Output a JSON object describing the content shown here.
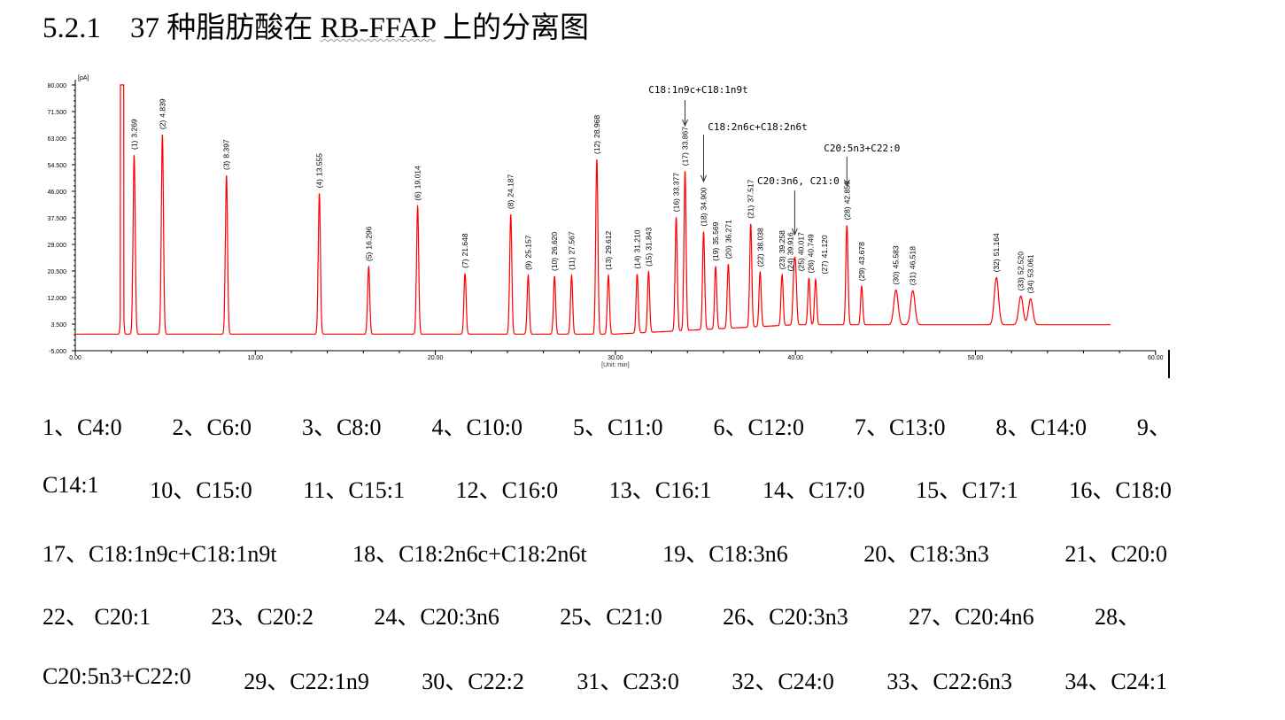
{
  "heading": {
    "number": "5.2.1",
    "text_before": "37 种脂肪酸在 ",
    "column": "RB-FFAP",
    "text_after": " 上的分离图"
  },
  "chart_data": {
    "type": "line",
    "title": "",
    "ylabel": "[pA]",
    "xlabel": "[Unit: min]",
    "xlim": [
      0,
      60
    ],
    "ylim": [
      -5,
      80
    ],
    "y_ticks": [
      "80.000",
      "71.500",
      "63.000",
      "54.500",
      "46.000",
      "37.500",
      "29.000",
      "20.500",
      "12.000",
      "3.500",
      "-5.000"
    ],
    "x_ticks": [
      "0.00",
      "10.00",
      "20.00",
      "30.00",
      "40.00",
      "50.00",
      "60.00"
    ],
    "colors": {
      "trace": "#ff0000",
      "axis": "#000000",
      "integration": "#3333ff"
    },
    "solvent_peak": {
      "rt": 2.6,
      "height": 80
    },
    "peaks": [
      {
        "id": "(1)",
        "rt": "3.269",
        "height": 57.3
      },
      {
        "id": "(2)",
        "rt": "4.839",
        "height": 63.8
      },
      {
        "id": "(3)",
        "rt": "8.397",
        "height": 50.8
      },
      {
        "id": "(4)",
        "rt": "13.555",
        "height": 45.0
      },
      {
        "id": "(5)",
        "rt": "16.296",
        "height": 21.6
      },
      {
        "id": "(6)",
        "rt": "19.014",
        "height": 41.0
      },
      {
        "id": "(7)",
        "rt": "21.648",
        "height": 19.4
      },
      {
        "id": "(8)",
        "rt": "24.187",
        "height": 38.3
      },
      {
        "id": "(9)",
        "rt": "25.157",
        "height": 18.8
      },
      {
        "id": "(10)",
        "rt": "26.620",
        "height": 18.5
      },
      {
        "id": "(11)",
        "rt": "27.567",
        "height": 18.8
      },
      {
        "id": "(12)",
        "rt": "28.968",
        "height": 55.9
      },
      {
        "id": "(13)",
        "rt": "29.612",
        "height": 18.8
      },
      {
        "id": "(14)",
        "rt": "31.210",
        "height": 18.8
      },
      {
        "id": "(15)",
        "rt": "31.843",
        "height": 19.4
      },
      {
        "id": "(16)",
        "rt": "33.377",
        "height": 36.4
      },
      {
        "id": "(17)",
        "rt": "33.867",
        "height": 51.0
      },
      {
        "id": "(18)",
        "rt": "34.900",
        "height": 31.3
      },
      {
        "id": "(19)",
        "rt": "35.569",
        "height": 20.0
      },
      {
        "id": "(20)",
        "rt": "36.271",
        "height": 20.5
      },
      {
        "id": "(21)",
        "rt": "37.517",
        "height": 33.0
      },
      {
        "id": "(22)",
        "rt": "38.038",
        "height": 17.4
      },
      {
        "id": "(23)",
        "rt": "39.258",
        "height": 16.2
      },
      {
        "id": "(24)",
        "rt": "39.916",
        "height": 15.4
      },
      {
        "id": "(25)",
        "rt": "40.017",
        "height": 15.4
      },
      {
        "id": "(26)",
        "rt": "40.749",
        "height": 14.8
      },
      {
        "id": "(27)",
        "rt": "41.120",
        "height": 14.5
      },
      {
        "id": "(28)",
        "rt": "42.859",
        "height": 31.8
      },
      {
        "id": "(29)",
        "rt": "43.678",
        "height": 12.3
      },
      {
        "id": "(30)",
        "rt": "45.583",
        "height": 11.1
      },
      {
        "id": "(31)",
        "rt": "46.518",
        "height": 10.9
      },
      {
        "id": "(32)",
        "rt": "51.164",
        "height": 15.1
      },
      {
        "id": "(33)",
        "rt": "52.520",
        "height": 9.2
      },
      {
        "id": "(34)",
        "rt": "53.061",
        "height": 8.3
      }
    ],
    "annotations": [
      {
        "text": "C18:1n9c+C18:1n9t",
        "rt": 33.867
      },
      {
        "text": "C18:2n6c+C18:2n6t",
        "rt": 34.9
      },
      {
        "text": "C20:3n6, C21:0",
        "rt": 39.96
      },
      {
        "text": "C20:5n3+C22:0",
        "rt": 42.859
      }
    ]
  },
  "legend_lines": [
    [
      "1、C4:0",
      "2、C6:0",
      "3、C8:0",
      "4、C10:0",
      "5、C11:0",
      "6、C12:0",
      "7、C13:0",
      "8、C14:0",
      "9、"
    ],
    [
      "C14:1",
      "10、C15:0",
      "11、C15:1",
      "12、C16:0",
      "13、C16:1",
      "14、C17:0",
      "15、C17:1",
      "16、C18:0"
    ],
    [
      "17、C18:1n9c+C18:1n9t",
      "18、C18:2n6c+C18:2n6t",
      "19、C18:3n6",
      "20、C18:3n3",
      "21、C20:0"
    ],
    [
      "22、 C20:1",
      "23、C20:2",
      "24、C20:3n6",
      "25、C21:0",
      "26、C20:3n3",
      "27、C20:4n6",
      "28、"
    ],
    [
      "C20:5n3+C22:0",
      "29、C22:1n9",
      "30、C22:2",
      "31、C23:0",
      "32、C24:0",
      "33、C22:6n3",
      "34、C24:1"
    ]
  ]
}
